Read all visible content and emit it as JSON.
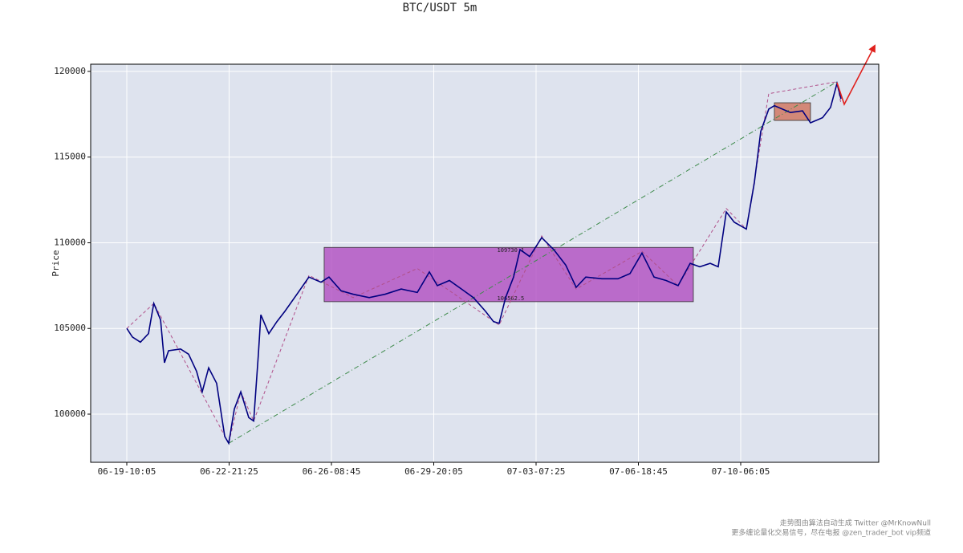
{
  "chart_data": {
    "type": "line",
    "title": "BTC/USDT 5m",
    "ylabel": "Price",
    "xlim": [
      -353,
      7349
    ],
    "ylim": [
      97190,
      120420
    ],
    "xticks": [
      {
        "value": 0,
        "label": "06-19-10:05"
      },
      {
        "value": 1000,
        "label": "06-22-21:25"
      },
      {
        "value": 2000,
        "label": "06-26-08:45"
      },
      {
        "value": 3000,
        "label": "06-29-20:05"
      },
      {
        "value": 4000,
        "label": "07-03-07:25"
      },
      {
        "value": 5000,
        "label": "07-06-18:45"
      },
      {
        "value": 6000,
        "label": "07-10-06:05"
      }
    ],
    "yticks": [
      100000,
      105000,
      110000,
      115000,
      120000
    ],
    "grid": true,
    "background": "#dee3ee",
    "x": [
      0,
      55,
      133,
      212,
      250,
      264,
      330,
      368,
      408,
      525,
      604,
      682,
      737,
      800,
      878,
      957,
      996,
      1051,
      1114,
      1192,
      1240,
      1286,
      1310,
      1388,
      1467,
      1545,
      1663,
      1780,
      1898,
      1976,
      2094,
      2212,
      2369,
      2525,
      2682,
      2839,
      2957,
      3035,
      3153,
      3271,
      3388,
      3506,
      3584,
      3639,
      3702,
      3780,
      3843,
      3937,
      4055,
      4173,
      4290,
      4392,
      4486,
      4643,
      4800,
      4918,
      5035,
      5153,
      5271,
      5388,
      5506,
      5600,
      5702,
      5780,
      5859,
      5937,
      6055,
      6133,
      6196,
      6274,
      6329,
      6486,
      6604,
      6682,
      6800,
      6878,
      6941,
      6980
    ],
    "series": [
      {
        "color": "#000080",
        "values": [
          105000,
          104500,
          104200,
          104700,
          106000,
          106460,
          105500,
          103000,
          103700,
          103800,
          103500,
          102500,
          101300,
          102700,
          101800,
          98700,
          98300,
          100300,
          101300,
          99800,
          99600,
          103500,
          105800,
          104700,
          105400,
          106000,
          107000,
          108000,
          107700,
          108000,
          107200,
          107000,
          106800,
          107000,
          107300,
          107100,
          108300,
          107500,
          107800,
          107300,
          106800,
          106000,
          105400,
          105300,
          106800,
          108000,
          109600,
          109200,
          110300,
          109600,
          108700,
          107400,
          108000,
          107900,
          107900,
          108200,
          109400,
          108000,
          107800,
          107500,
          108800,
          108600,
          108800,
          108600,
          111800,
          111200,
          110800,
          113500,
          116500,
          117800,
          118000,
          117600,
          117700,
          117000,
          117300,
          117900,
          119300,
          118400
        ]
      }
    ],
    "strokes": [
      {
        "color": "#b0508a",
        "x": [
          0,
          264,
          996,
          1114,
          1240,
          1780,
          2212,
          2839,
          3639,
          4055,
          4392,
          5035,
          5388,
          5859,
          6055,
          6274,
          6941,
          6980
        ],
        "values": [
          105000,
          106460,
          98300,
          101300,
          99600,
          108100,
          106800,
          108500,
          105200,
          110400,
          107300,
          109500,
          107500,
          112000,
          110800,
          118700,
          119400,
          118100
        ]
      },
      {
        "color": "#3d8a4a",
        "x": [
          996,
          6941
        ],
        "values": [
          98300,
          119400
        ]
      }
    ],
    "boxes": [
      {
        "color": "#b04cc0",
        "x": [
          1929,
          5537
        ],
        "low": 106562.5,
        "high": 109730.1,
        "label_x": 3620
      },
      {
        "color": "#d0705a",
        "x": [
          6329,
          6682
        ],
        "low": 117140,
        "high": 118170
      }
    ],
    "arrow": {
      "color": "#e0201c",
      "x": [
        6941,
        7012,
        7310
      ],
      "values": [
        119340,
        118080,
        121500
      ]
    },
    "footer": [
      "走势图由算法自动生成  Twitter @MrKnowNull",
      "更多缠论量化交易信号，尽在电报 @zen_trader_bot vip频道"
    ]
  }
}
